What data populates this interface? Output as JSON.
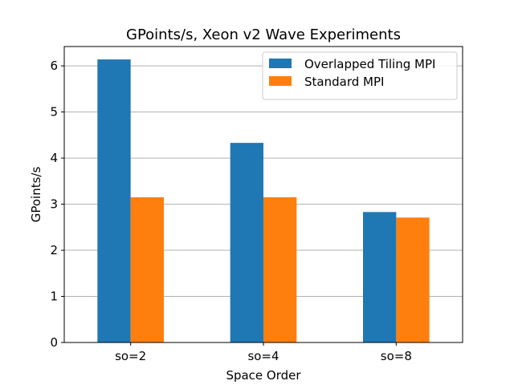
{
  "chart_data": {
    "type": "bar",
    "title": "GPoints/s, Xeon v2 Wave Experiments",
    "xlabel": "Space Order",
    "ylabel": "GPoints/s",
    "categories": [
      "so=2",
      "so=4",
      "so=8"
    ],
    "series": [
      {
        "name": "Overlapped Tiling MPI",
        "color": "#1f77b4",
        "values": [
          6.14,
          4.33,
          2.83
        ]
      },
      {
        "name": "Standard MPI",
        "color": "#ff7f0e",
        "values": [
          3.15,
          3.15,
          2.71
        ]
      }
    ],
    "ylim": [
      0,
      6.42
    ],
    "yticks": [
      0,
      1,
      2,
      3,
      4,
      5,
      6
    ],
    "grid": "horizontal",
    "legend_position": "top-right"
  }
}
